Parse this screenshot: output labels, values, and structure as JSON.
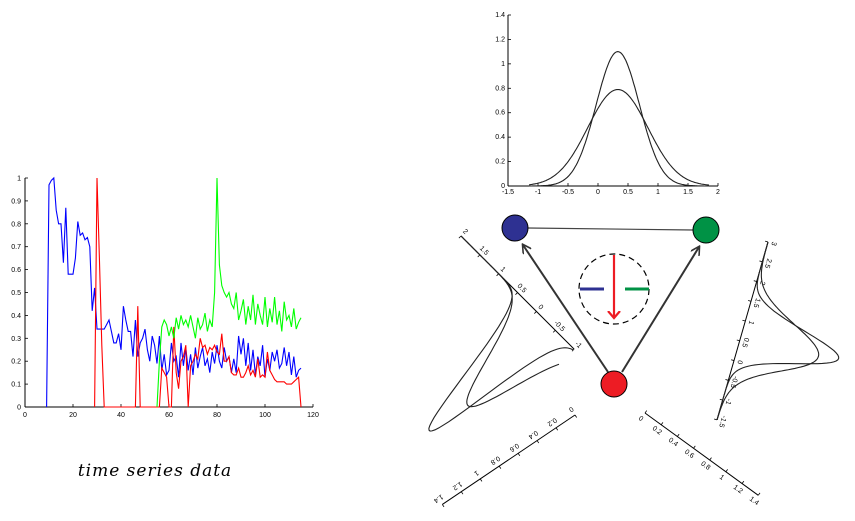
{
  "caption": "time series data",
  "chart_data": [
    {
      "type": "line",
      "xlim": [
        0,
        120
      ],
      "ylim": [
        0,
        1
      ],
      "xticks": [
        0,
        20,
        40,
        60,
        80,
        100,
        120
      ],
      "yticks": [
        0,
        0.1,
        0.2,
        0.3,
        0.4,
        0.5,
        0.6,
        0.7,
        0.8,
        0.9,
        1
      ],
      "series": [
        {
          "color": "#0000ff",
          "points": [
            [
              9,
              0
            ],
            [
              10,
              0.97
            ],
            [
              11,
              0.99
            ],
            [
              12,
              1
            ],
            [
              13,
              0.86
            ],
            [
              14,
              0.8
            ],
            [
              15,
              0.8
            ],
            [
              16,
              0.63
            ],
            [
              17,
              0.87
            ],
            [
              18,
              0.58
            ],
            [
              19,
              0.58
            ],
            [
              20,
              0.58
            ],
            [
              21,
              0.65
            ],
            [
              22,
              0.81
            ],
            [
              23,
              0.75
            ],
            [
              24,
              0.76
            ],
            [
              25,
              0.73
            ],
            [
              26,
              0.74
            ],
            [
              27,
              0.7
            ],
            [
              28,
              0.42
            ],
            [
              29,
              0.52
            ],
            [
              30,
              0.34
            ],
            [
              31,
              0.34
            ],
            [
              32,
              0.34
            ],
            [
              33,
              0.34
            ],
            [
              34,
              0.36
            ],
            [
              35,
              0.38
            ],
            [
              36,
              0.33
            ],
            [
              37,
              0.28
            ],
            [
              38,
              0.28
            ],
            [
              39,
              0.32
            ],
            [
              40,
              0.25
            ],
            [
              41,
              0.44
            ],
            [
              42,
              0.38
            ],
            [
              43,
              0.33
            ],
            [
              44,
              0.33
            ],
            [
              45,
              0.22
            ],
            [
              46,
              0.38
            ],
            [
              47,
              0.22
            ],
            [
              48,
              0.28
            ],
            [
              49,
              0.3
            ],
            [
              50,
              0.34
            ],
            [
              51,
              0.25
            ],
            [
              52,
              0.2
            ],
            [
              53,
              0.31
            ],
            [
              54,
              0.27
            ],
            [
              55,
              0.19
            ],
            [
              56,
              0.31
            ],
            [
              57,
              0.16
            ],
            [
              58,
              0.23
            ],
            [
              59,
              0.14
            ],
            [
              60,
              0.16
            ],
            [
              61,
              0.28
            ],
            [
              62,
              0.2
            ],
            [
              63,
              0.22
            ],
            [
              64,
              0.13
            ],
            [
              65,
              0.28
            ],
            [
              66,
              0.18
            ],
            [
              67,
              0.26
            ],
            [
              68,
              0.16
            ],
            [
              69,
              0.23
            ],
            [
              70,
              0.14
            ],
            [
              71,
              0.26
            ],
            [
              72,
              0.17
            ],
            [
              73,
              0.22
            ],
            [
              74,
              0.26
            ],
            [
              75,
              0.18
            ],
            [
              76,
              0.21
            ],
            [
              77,
              0.15
            ],
            [
              78,
              0.24
            ],
            [
              79,
              0.19
            ],
            [
              80,
              0.27
            ],
            [
              81,
              0.2
            ],
            [
              82,
              0.17
            ],
            [
              83,
              0.26
            ],
            [
              84,
              0.2
            ],
            [
              85,
              0.22
            ],
            [
              86,
              0.15
            ],
            [
              87,
              0.21
            ],
            [
              88,
              0.15
            ],
            [
              89,
              0.31
            ],
            [
              90,
              0.23
            ],
            [
              91,
              0.3
            ],
            [
              92,
              0.18
            ],
            [
              93,
              0.28
            ],
            [
              94,
              0.16
            ],
            [
              95,
              0.25
            ],
            [
              96,
              0.14
            ],
            [
              97,
              0.22
            ],
            [
              98,
              0.18
            ],
            [
              99,
              0.27
            ],
            [
              100,
              0.13
            ],
            [
              101,
              0.21
            ],
            [
              102,
              0.16
            ],
            [
              103,
              0.24
            ],
            [
              104,
              0.2
            ],
            [
              105,
              0.25
            ],
            [
              106,
              0.17
            ],
            [
              107,
              0.19
            ],
            [
              108,
              0.26
            ],
            [
              109,
              0.18
            ],
            [
              110,
              0.24
            ],
            [
              111,
              0.14
            ],
            [
              112,
              0.22
            ],
            [
              113,
              0.13
            ],
            [
              114,
              0.16
            ],
            [
              115,
              0.17
            ]
          ]
        },
        {
          "color": "#ff0000",
          "points": [
            [
              29,
              0
            ],
            [
              30,
              1
            ],
            [
              31,
              0.65
            ],
            [
              32,
              0.27
            ],
            [
              33,
              0
            ],
            [
              46,
              0
            ],
            [
              47,
              0.44
            ],
            [
              48,
              0
            ],
            [
              55,
              0
            ],
            [
              56,
              0
            ],
            [
              57,
              0.17
            ],
            [
              58,
              0.15
            ],
            [
              59,
              0.13
            ],
            [
              60,
              0
            ],
            [
              61,
              0
            ],
            [
              62,
              0.35
            ],
            [
              63,
              0.15
            ],
            [
              64,
              0.08
            ],
            [
              65,
              0.2
            ],
            [
              66,
              0.22
            ],
            [
              67,
              0.27
            ],
            [
              68,
              0
            ],
            [
              69,
              0.18
            ],
            [
              70,
              0.2
            ],
            [
              71,
              0.23
            ],
            [
              72,
              0.21
            ],
            [
              73,
              0.3
            ],
            [
              74,
              0.26
            ],
            [
              75,
              0.27
            ],
            [
              76,
              0.23
            ],
            [
              77,
              0.26
            ],
            [
              78,
              0.25
            ],
            [
              79,
              0.27
            ],
            [
              80,
              0.24
            ],
            [
              81,
              0.23
            ],
            [
              82,
              0.32
            ],
            [
              83,
              0.2
            ],
            [
              84,
              0.2
            ],
            [
              85,
              0.22
            ],
            [
              86,
              0.15
            ],
            [
              87,
              0.14
            ],
            [
              88,
              0.14
            ],
            [
              89,
              0.17
            ],
            [
              90,
              0.13
            ],
            [
              91,
              0.13
            ],
            [
              92,
              0.15
            ],
            [
              93,
              0.18
            ],
            [
              94,
              0.14
            ],
            [
              95,
              0.16
            ],
            [
              96,
              0.13
            ],
            [
              97,
              0.21
            ],
            [
              98,
              0.13
            ],
            [
              99,
              0.14
            ],
            [
              100,
              0.13
            ],
            [
              101,
              0.24
            ],
            [
              102,
              0.16
            ],
            [
              103,
              0.14
            ],
            [
              104,
              0.12
            ],
            [
              105,
              0.11
            ],
            [
              106,
              0.11
            ],
            [
              107,
              0.11
            ],
            [
              108,
              0.11
            ],
            [
              109,
              0.1
            ],
            [
              110,
              0.1
            ],
            [
              111,
              0.1
            ],
            [
              112,
              0.11
            ],
            [
              113,
              0.12
            ],
            [
              114,
              0.13
            ],
            [
              115,
              0
            ]
          ]
        },
        {
          "color": "#00ff00",
          "points": [
            [
              55,
              0
            ],
            [
              56,
              0.2
            ],
            [
              57,
              0.35
            ],
            [
              58,
              0.38
            ],
            [
              59,
              0.36
            ],
            [
              60,
              0.31
            ],
            [
              61,
              0.35
            ],
            [
              62,
              0.3
            ],
            [
              63,
              0.39
            ],
            [
              64,
              0.34
            ],
            [
              65,
              0.4
            ],
            [
              66,
              0.36
            ],
            [
              67,
              0.38
            ],
            [
              68,
              0.35
            ],
            [
              69,
              0.4
            ],
            [
              70,
              0.35
            ],
            [
              71,
              0.3
            ],
            [
              72,
              0.39
            ],
            [
              73,
              0.34
            ],
            [
              74,
              0.36
            ],
            [
              75,
              0.41
            ],
            [
              76,
              0.33
            ],
            [
              77,
              0.38
            ],
            [
              78,
              0.35
            ],
            [
              79,
              0.5
            ],
            [
              80,
              1
            ],
            [
              81,
              0.62
            ],
            [
              82,
              0.53
            ],
            [
              83,
              0.5
            ],
            [
              84,
              0.48
            ],
            [
              85,
              0.5
            ],
            [
              86,
              0.45
            ],
            [
              87,
              0.43
            ],
            [
              88,
              0.5
            ],
            [
              89,
              0.38
            ],
            [
              90,
              0.42
            ],
            [
              91,
              0.47
            ],
            [
              92,
              0.36
            ],
            [
              93,
              0.44
            ],
            [
              94,
              0.38
            ],
            [
              95,
              0.49
            ],
            [
              96,
              0.36
            ],
            [
              97,
              0.45
            ],
            [
              98,
              0.4
            ],
            [
              99,
              0.36
            ],
            [
              100,
              0.48
            ],
            [
              101,
              0.35
            ],
            [
              102,
              0.43
            ],
            [
              103,
              0.37
            ],
            [
              104,
              0.48
            ],
            [
              105,
              0.36
            ],
            [
              106,
              0.42
            ],
            [
              107,
              0.33
            ],
            [
              108,
              0.46
            ],
            [
              109,
              0.38
            ],
            [
              110,
              0.4
            ],
            [
              111,
              0.35
            ],
            [
              112,
              0.43
            ],
            [
              113,
              0.34
            ],
            [
              114,
              0.37
            ],
            [
              115,
              0.39
            ]
          ]
        }
      ]
    },
    {
      "type": "line",
      "xlim": [
        -1.5,
        2
      ],
      "ylim": [
        0,
        1.4
      ],
      "xticks": [
        -1.5,
        -1,
        -0.5,
        0,
        0.5,
        1,
        1.5,
        2
      ],
      "xtick_labels": [
        "-1.5",
        "-1",
        "-0.5",
        "0",
        "0.5",
        "1",
        "1.5",
        "2"
      ],
      "yticks": [
        0,
        0.2,
        0.4,
        0.6,
        0.8,
        1,
        1.2,
        1.4
      ],
      "ytick_labels": [
        "0",
        "0.2",
        "0.4",
        "0.6",
        "0.8",
        "1",
        "1.2",
        "1.4"
      ],
      "series": [
        {
          "color": "#222222",
          "gaussian": {
            "mu": 0.33,
            "sigma": 0.36,
            "peak": 1.1
          }
        },
        {
          "color": "#222222",
          "gaussian": {
            "mu": 0.33,
            "sigma": 0.5,
            "peak": 0.79
          }
        }
      ]
    },
    {
      "type": "diagram",
      "nodes": [
        {
          "name": "blue-node",
          "color": "#2e3192"
        },
        {
          "name": "green-node",
          "color": "#009245"
        },
        {
          "name": "red-node",
          "color": "#ed1c24"
        }
      ],
      "center_glyph": {
        "bar_left_color": "#2e3192",
        "bar_right_color": "#009245",
        "arrow_color": "#ed1c24"
      }
    },
    {
      "type": "line",
      "rotated": true,
      "axis_ticks": [
        "2",
        "1.5",
        "1",
        "0.5",
        "0",
        "-0.5",
        "-1"
      ],
      "density_ticks": [
        "0",
        "0.2",
        "0.4",
        "0.6",
        "0.8",
        "1",
        "1.2",
        "1.4"
      ]
    },
    {
      "type": "line",
      "rotated": true,
      "axis_ticks": [
        "3",
        "2.5",
        "2",
        "1.5",
        "1",
        "0.5",
        "0",
        "-0.5",
        "-1",
        "-1.5"
      ],
      "density_ticks": [
        "0",
        "0.2",
        "0.4",
        "0.6",
        "0.8",
        "1",
        "1.2",
        "1.4"
      ]
    }
  ]
}
